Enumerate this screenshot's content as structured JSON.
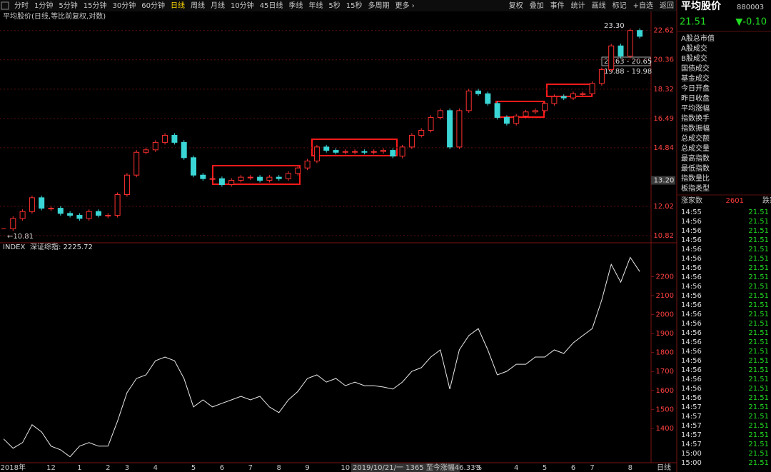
{
  "toolbar": {
    "periods": [
      "分时",
      "1分钟",
      "5分钟",
      "15分钟",
      "30分钟",
      "60分钟",
      "日线",
      "周线",
      "月线",
      "10分钟",
      "45日线",
      "季线",
      "年线",
      "5秒",
      "15秒",
      "多周期",
      "更多 ›"
    ],
    "active": 6,
    "actions": [
      "复权",
      "叠加",
      "事件",
      "统计",
      "画线",
      "标记",
      "+自选",
      "返回"
    ]
  },
  "chart_data": [
    {
      "type": "candlestick",
      "title": "平均股价(日线,等比前复权,对数)",
      "log_scale": true,
      "grid": true,
      "ylim": [
        10.6,
        24.1
      ],
      "yticks": [
        10.82,
        12.02,
        {
          "value": 13.2,
          "label": "13.20"
        },
        14.84,
        16.49,
        18.32,
        20.36,
        22.62
      ],
      "up_color": "#ff3030",
      "down_color": "#3ad6d6",
      "annotations": [
        "23.30",
        "20.63 - 20.65",
        "19.88 - 19.98",
        "←10.81"
      ],
      "values": [
        11.09,
        11.51,
        11.8,
        12.4,
        11.94,
        11.94,
        11.72,
        11.64,
        11.51,
        11.8,
        11.64,
        11.64,
        12.54,
        13.45,
        14.6,
        14.73,
        15.13,
        15.52,
        15.13,
        14.32,
        13.45,
        13.28,
        13.28,
        13.0,
        13.2,
        13.35,
        13.35,
        13.2,
        13.35,
        13.28,
        13.53,
        13.8,
        14.15,
        14.88,
        14.7,
        14.6,
        14.64,
        14.64,
        14.6,
        14.64,
        14.7,
        14.4,
        14.88,
        15.52,
        15.8,
        16.55,
        16.96,
        14.88,
        16.96,
        18.2,
        18.02,
        17.4,
        16.55,
        16.2,
        16.63,
        16.88,
        16.96,
        17.4,
        17.84,
        17.75,
        18.02,
        18.02,
        18.7,
        19.65,
        21.4,
        20.63,
        22.62,
        22.15
      ]
    },
    {
      "type": "line",
      "title": "INDEX",
      "subtitle": "深证综指: 2225.72",
      "color": "#e8e8e8",
      "grid": false,
      "ylim": [
        1230,
        2360
      ],
      "yticks": [
        1400,
        1500,
        1600,
        1700,
        1800,
        1900,
        2000,
        2100,
        2200
      ],
      "categories": [
        null,
        "2018年",
        null,
        null,
        null,
        "12",
        null,
        null,
        "1",
        null,
        null,
        "2",
        null,
        "3",
        null,
        null,
        "4",
        null,
        null,
        null,
        "5",
        null,
        null,
        "6",
        null,
        null,
        "7",
        null,
        null,
        "8",
        null,
        null,
        "9",
        null,
        null,
        null,
        "10",
        null,
        null,
        null,
        null,
        null,
        null,
        null,
        null,
        null,
        null,
        null,
        null,
        null,
        "3",
        null,
        null,
        null,
        "4",
        null,
        null,
        "5",
        null,
        null,
        "6",
        null,
        "7",
        null,
        null,
        null,
        "8",
        null
      ],
      "values": [
        1344,
        1295,
        1325,
        1419,
        1381,
        1306,
        1287,
        1250,
        1306,
        1325,
        1306,
        1306,
        1438,
        1588,
        1663,
        1682,
        1757,
        1776,
        1757,
        1663,
        1513,
        1550,
        1513,
        1532,
        1550,
        1569,
        1550,
        1569,
        1513,
        1483,
        1550,
        1595,
        1663,
        1682,
        1644,
        1663,
        1625,
        1644,
        1625,
        1625,
        1618,
        1607,
        1644,
        1701,
        1720,
        1776,
        1814,
        1607,
        1814,
        1889,
        1926,
        1814,
        1682,
        1701,
        1738,
        1738,
        1776,
        1776,
        1814,
        1795,
        1851,
        1889,
        1926,
        2077,
        2265,
        2171,
        2302,
        2227
      ]
    }
  ],
  "status": "2019/10/21/一 1365 至今涨幅46.33%",
  "period_label": "日线",
  "panel": {
    "name": "平均股价",
    "code": "880003",
    "price": "21.51",
    "change": "▼-0.10",
    "items": [
      "A股总市值",
      "A股成交",
      "B股成交",
      "国债成交",
      "基金成交",
      "今日开盘",
      "昨日收盘",
      "平均涨幅",
      "指数换手",
      "指数振幅",
      "总成交额",
      "总成交量",
      "最高指数",
      "最低指数",
      "指数量比",
      "板指类型"
    ],
    "advancers_label": "涨家数",
    "advancers": 2601,
    "decliners_label": "跌家数",
    "ticks": [
      [
        "14:55",
        "21.51"
      ],
      [
        "14:56",
        "21.51"
      ],
      [
        "14:56",
        "21.51"
      ],
      [
        "14:56",
        "21.51"
      ],
      [
        "14:56",
        "21.51"
      ],
      [
        "14:56",
        "21.51"
      ],
      [
        "14:56",
        "21.51"
      ],
      [
        "14:56",
        "21.51"
      ],
      [
        "14:56",
        "21.51"
      ],
      [
        "14:56",
        "21.51"
      ],
      [
        "14:56",
        "21.51"
      ],
      [
        "14:56",
        "21.51"
      ],
      [
        "14:56",
        "21.51"
      ],
      [
        "14:56",
        "21.51"
      ],
      [
        "14:56",
        "21.51"
      ],
      [
        "14:56",
        "21.51"
      ],
      [
        "14:56",
        "21.51"
      ],
      [
        "14:56",
        "21.51"
      ],
      [
        "14:56",
        "21.51"
      ],
      [
        "14:56",
        "21.51"
      ],
      [
        "14:56",
        "21.51"
      ],
      [
        "14:57",
        "21.51"
      ],
      [
        "14:57",
        "21.51"
      ],
      [
        "14:57",
        "21.51"
      ],
      [
        "14:57",
        "21.51"
      ],
      [
        "14:57",
        "21.51"
      ],
      [
        "15:00",
        "21.51"
      ],
      [
        "15:00",
        "21.51"
      ]
    ]
  }
}
